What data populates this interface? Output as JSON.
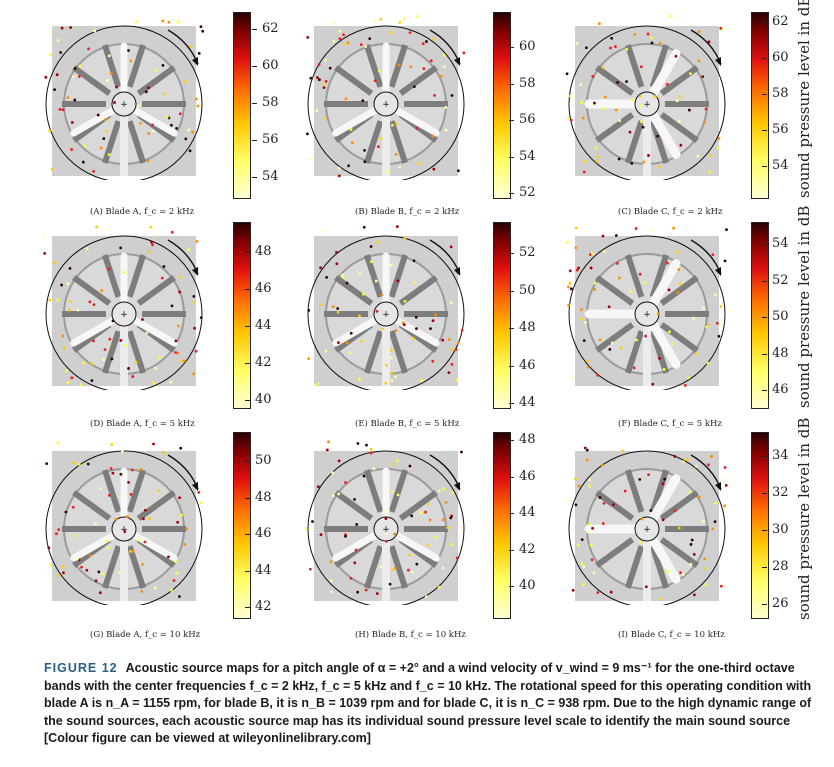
{
  "figure_label": "FIGURE 12",
  "caption_text": "Acoustic source maps for a pitch angle of α = +2° and a wind velocity of v_wind = 9 ms⁻¹ for the one-third octave bands with the center frequencies f_c = 2 kHz, f_c = 5 kHz and f_c = 10 kHz. The rotational speed for this operating condition with blade A is n_A = 1155 rpm, for blade B, it is n_B = 1039 rpm and for blade C, it is n_C = 938 rpm. Due to the high dynamic range of the sound sources, each acoustic source map has its individual sound pressure level scale to identify the main sound source [Colour figure can be viewed at wileyonlinelibrary.com]",
  "colorbar_label": "sound pressure level in dB",
  "colors": {
    "caption_accent": "#2b5f86",
    "photo_gray": "#cfcfcf",
    "rotor_line": "#111111"
  },
  "panels": [
    {
      "id": "A",
      "label": "(A) Blade A, f_c = 2 kHz",
      "ticks": [
        "62",
        "60",
        "58",
        "56",
        "54"
      ]
    },
    {
      "id": "B",
      "label": "(B) Blade B, f_c = 2 kHz",
      "ticks": [
        "60",
        "58",
        "56",
        "54",
        "52"
      ]
    },
    {
      "id": "C",
      "label": "(C) Blade C, f_c = 2 kHz",
      "ticks": [
        "62",
        "60",
        "58",
        "56",
        "54"
      ]
    },
    {
      "id": "D",
      "label": "(D) Blade A, f_c = 5 kHz",
      "ticks": [
        "48",
        "46",
        "44",
        "42",
        "40"
      ]
    },
    {
      "id": "E",
      "label": "(E) Blade B, f_c = 5 kHz",
      "ticks": [
        "52",
        "50",
        "48",
        "46",
        "44"
      ]
    },
    {
      "id": "F",
      "label": "(F) Blade C, f_c = 5 kHz",
      "ticks": [
        "54",
        "52",
        "50",
        "48",
        "46"
      ]
    },
    {
      "id": "G",
      "label": "(G) Blade A, f_c = 10 kHz",
      "ticks": [
        "50",
        "48",
        "46",
        "44",
        "42"
      ]
    },
    {
      "id": "H",
      "label": "(H) Blade B, f_c = 10 kHz",
      "ticks": [
        "48",
        "46",
        "44",
        "42",
        "40"
      ]
    },
    {
      "id": "I",
      "label": "(I) Blade C, f_c = 10 kHz",
      "ticks": [
        "34",
        "32",
        "30",
        "28",
        "26"
      ]
    }
  ]
}
